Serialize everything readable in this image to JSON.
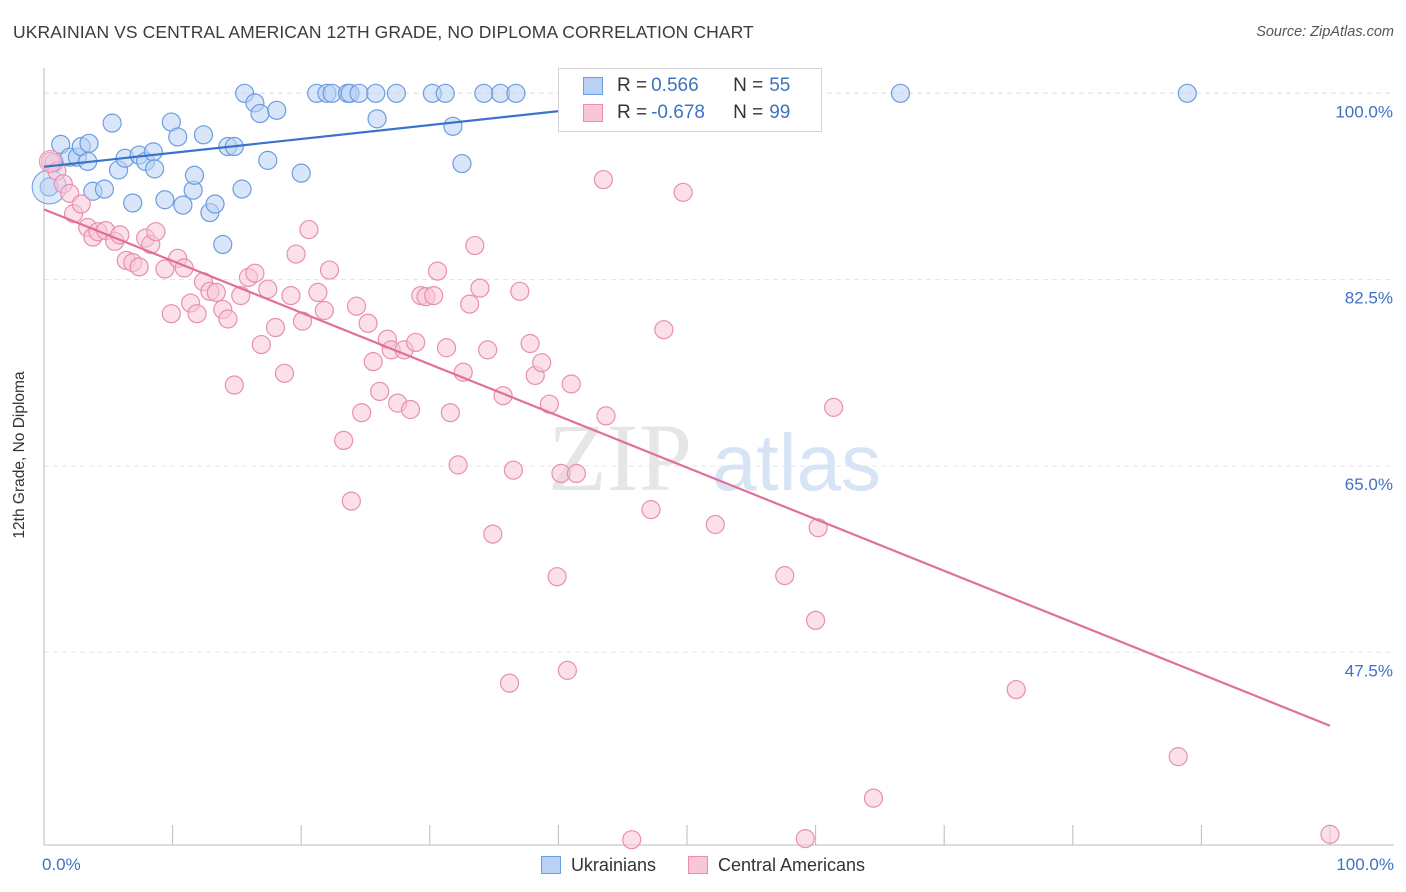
{
  "title": "UKRAINIAN VS CENTRAL AMERICAN 12TH GRADE, NO DIPLOMA CORRELATION CHART",
  "source": "Source: ZipAtlas.com",
  "watermark": {
    "zip": "ZIP",
    "atlas": "atlas"
  },
  "colors": {
    "blue": "#6b9de0",
    "blue_fill": "#b9d1f4",
    "blue_line": "#3a73cc",
    "pink": "#e88fb0",
    "pink_fill": "#f8c6d7",
    "pink_line": "#e0709a",
    "axis_text": "#3d72c4",
    "grid": "#e4e4e4"
  },
  "legend_top": {
    "rows": [
      {
        "r_label": "R =",
        "r_value": "0.566",
        "n_label": "N =",
        "n_value": "55"
      },
      {
        "r_label": "R =",
        "r_value": "-0.678",
        "n_label": "N =",
        "n_value": "99"
      }
    ]
  },
  "legend_bottom": {
    "items": [
      "Ukrainians",
      "Central Americans"
    ]
  },
  "chart_data": {
    "type": "scatter",
    "title": "UKRAINIAN VS CENTRAL AMERICAN 12TH GRADE, NO DIPLOMA CORRELATION CHART",
    "xlabel": "",
    "ylabel": "12th Grade, No Diploma",
    "xlim": [
      0,
      100
    ],
    "ylim": [
      29.4,
      102
    ],
    "x_tick_labels": [
      "0.0%",
      "100.0%"
    ],
    "y_ticks": [
      100,
      82.5,
      65,
      47.5
    ],
    "y_tick_labels": [
      "100.0%",
      "82.5%",
      "65.0%",
      "47.5%"
    ],
    "grid": true,
    "series": [
      {
        "name": "Ukrainians",
        "R": 0.566,
        "N": 55,
        "trend": {
          "x": [
            0,
            47.5
          ],
          "y": [
            93.1,
            99.3
          ]
        },
        "points": [
          [
            0.4,
            91.2
          ],
          [
            0.8,
            93.5
          ],
          [
            1.3,
            95.2
          ],
          [
            2.0,
            94.0
          ],
          [
            2.6,
            94.0
          ],
          [
            2.9,
            95.0
          ],
          [
            3.4,
            93.6
          ],
          [
            3.5,
            95.3
          ],
          [
            3.8,
            90.8
          ],
          [
            4.7,
            91.0
          ],
          [
            5.3,
            97.2
          ],
          [
            5.8,
            92.8
          ],
          [
            6.3,
            93.9
          ],
          [
            6.9,
            89.7
          ],
          [
            7.4,
            94.2
          ],
          [
            7.9,
            93.6
          ],
          [
            8.5,
            94.5
          ],
          [
            8.6,
            92.9
          ],
          [
            9.4,
            90.0
          ],
          [
            9.9,
            97.3
          ],
          [
            10.4,
            95.9
          ],
          [
            10.8,
            89.5
          ],
          [
            11.6,
            90.9
          ],
          [
            11.7,
            92.3
          ],
          [
            12.4,
            96.1
          ],
          [
            12.9,
            88.8
          ],
          [
            13.3,
            89.6
          ],
          [
            13.9,
            85.8
          ],
          [
            14.3,
            95.0
          ],
          [
            14.8,
            95.0
          ],
          [
            15.4,
            91.0
          ],
          [
            15.6,
            100.0
          ],
          [
            16.4,
            99.1
          ],
          [
            16.8,
            98.1
          ],
          [
            17.4,
            93.7
          ],
          [
            18.1,
            98.4
          ],
          [
            20.0,
            92.5
          ],
          [
            21.2,
            100.0
          ],
          [
            22.0,
            100.0
          ],
          [
            22.4,
            100.0
          ],
          [
            23.6,
            100.0
          ],
          [
            23.8,
            100.0
          ],
          [
            24.5,
            100.0
          ],
          [
            25.8,
            100.0
          ],
          [
            25.9,
            97.6
          ],
          [
            27.4,
            100.0
          ],
          [
            30.2,
            100.0
          ],
          [
            31.2,
            100.0
          ],
          [
            31.8,
            96.9
          ],
          [
            32.5,
            93.4
          ],
          [
            34.2,
            100.0
          ],
          [
            35.5,
            100.0
          ],
          [
            36.7,
            100.0
          ],
          [
            66.6,
            100.0
          ],
          [
            88.9,
            100.0
          ]
        ]
      },
      {
        "name": "Central Americans",
        "R": -0.678,
        "N": 99,
        "trend": {
          "x": [
            0,
            100
          ],
          "y": [
            89.1,
            40.6
          ]
        },
        "points": [
          [
            0.5,
            93.6
          ],
          [
            1.0,
            92.7
          ],
          [
            1.5,
            91.5
          ],
          [
            2.0,
            90.6
          ],
          [
            2.3,
            88.7
          ],
          [
            2.9,
            89.6
          ],
          [
            3.4,
            87.4
          ],
          [
            3.8,
            86.5
          ],
          [
            4.2,
            87.0
          ],
          [
            4.8,
            87.1
          ],
          [
            5.5,
            86.1
          ],
          [
            5.9,
            86.7
          ],
          [
            6.4,
            84.3
          ],
          [
            6.9,
            84.1
          ],
          [
            7.4,
            83.7
          ],
          [
            7.9,
            86.4
          ],
          [
            8.3,
            85.8
          ],
          [
            8.7,
            87.0
          ],
          [
            9.4,
            83.5
          ],
          [
            9.9,
            79.3
          ],
          [
            10.4,
            84.5
          ],
          [
            10.9,
            83.6
          ],
          [
            11.4,
            80.3
          ],
          [
            11.9,
            79.3
          ],
          [
            12.4,
            82.3
          ],
          [
            12.9,
            81.4
          ],
          [
            13.4,
            81.3
          ],
          [
            13.9,
            79.7
          ],
          [
            14.3,
            78.8
          ],
          [
            14.8,
            72.6
          ],
          [
            15.3,
            81.0
          ],
          [
            15.9,
            82.7
          ],
          [
            16.4,
            83.1
          ],
          [
            16.9,
            76.4
          ],
          [
            17.4,
            81.6
          ],
          [
            18.0,
            78.0
          ],
          [
            18.7,
            73.7
          ],
          [
            19.2,
            81.0
          ],
          [
            19.6,
            84.9
          ],
          [
            20.1,
            78.6
          ],
          [
            20.6,
            87.2
          ],
          [
            21.3,
            81.3
          ],
          [
            21.8,
            79.6
          ],
          [
            22.2,
            83.4
          ],
          [
            23.3,
            67.4
          ],
          [
            23.9,
            61.7
          ],
          [
            24.3,
            80.0
          ],
          [
            24.7,
            70.0
          ],
          [
            25.2,
            78.4
          ],
          [
            25.6,
            74.8
          ],
          [
            26.1,
            72.0
          ],
          [
            26.7,
            76.9
          ],
          [
            27.0,
            75.9
          ],
          [
            27.5,
            70.9
          ],
          [
            28.0,
            75.9
          ],
          [
            28.5,
            70.3
          ],
          [
            28.9,
            76.6
          ],
          [
            29.3,
            81.0
          ],
          [
            29.7,
            80.9
          ],
          [
            30.3,
            81.0
          ],
          [
            30.6,
            83.3
          ],
          [
            31.3,
            76.1
          ],
          [
            31.6,
            70.0
          ],
          [
            32.2,
            65.1
          ],
          [
            32.6,
            73.8
          ],
          [
            33.1,
            80.2
          ],
          [
            33.5,
            85.7
          ],
          [
            33.9,
            81.7
          ],
          [
            34.5,
            75.9
          ],
          [
            34.9,
            58.6
          ],
          [
            35.7,
            71.6
          ],
          [
            36.2,
            44.6
          ],
          [
            36.5,
            64.6
          ],
          [
            37.0,
            81.4
          ],
          [
            37.8,
            76.5
          ],
          [
            38.2,
            73.5
          ],
          [
            38.7,
            74.7
          ],
          [
            39.3,
            70.8
          ],
          [
            39.9,
            54.6
          ],
          [
            40.2,
            64.3
          ],
          [
            40.7,
            45.8
          ],
          [
            41.0,
            72.7
          ],
          [
            41.4,
            64.3
          ],
          [
            43.5,
            91.9
          ],
          [
            43.7,
            69.7
          ],
          [
            47.2,
            60.9
          ],
          [
            48.2,
            77.8
          ],
          [
            49.7,
            90.7
          ],
          [
            52.2,
            59.5
          ],
          [
            57.6,
            54.7
          ],
          [
            60.0,
            50.5
          ],
          [
            60.2,
            59.2
          ],
          [
            61.4,
            70.5
          ],
          [
            75.6,
            44.0
          ],
          [
            88.2,
            37.7
          ],
          [
            100.0,
            30.4
          ],
          [
            59.2,
            30.0
          ],
          [
            64.5,
            33.8
          ],
          [
            45.7,
            29.9
          ]
        ]
      }
    ]
  }
}
